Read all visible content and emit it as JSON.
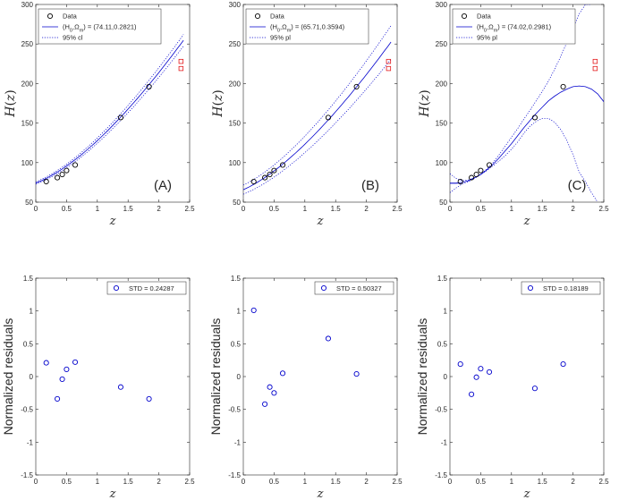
{
  "chart_data": [
    {
      "type": "scatter",
      "panel": "A",
      "panel_label": "(A)",
      "xlabel": "z",
      "ylabel": "H(z)",
      "xlim": [
        0,
        2.5
      ],
      "ylim": [
        50,
        300
      ],
      "xticks": [
        0,
        0.5,
        1,
        1.5,
        2,
        2.5
      ],
      "yticks": [
        50,
        100,
        150,
        200,
        250,
        300
      ],
      "xtick_labels": [
        "0",
        "0.5",
        "1",
        "1.5",
        "2",
        "2.5"
      ],
      "ytick_labels": [
        "50",
        "100",
        "150",
        "200",
        "250",
        "300"
      ],
      "grid": false,
      "legend_position": "top-left",
      "legend": [
        "Data",
        "(H_0,Ω_m) = (74.11,0.2821)",
        "95% cl"
      ],
      "series": [
        {
          "name": "Data",
          "kind": "points",
          "color": "#000000",
          "x": [
            0.17,
            0.35,
            0.43,
            0.5,
            0.64,
            1.38,
            1.84
          ],
          "y": [
            76,
            81,
            85,
            90,
            97,
            157,
            196
          ]
        },
        {
          "name": "(H_0,Ω_m) = (74.11,0.2821)",
          "kind": "fit",
          "color": "#0000cc",
          "H0": 74.11,
          "Om": 0.2821
        },
        {
          "name": "95% cl",
          "kind": "band",
          "color": "#0000cc",
          "lower": {
            "H0": 72.6,
            "Om": 0.2769
          },
          "upper": {
            "H0": 75.6,
            "Om": 0.2873
          }
        }
      ],
      "extra_points": {
        "color": "#e41a1c",
        "x": [
          2.36,
          2.36
        ],
        "y": [
          228,
          219
        ]
      }
    },
    {
      "type": "scatter",
      "panel": "B",
      "panel_label": "(B)",
      "xlabel": "z",
      "ylabel": "H(z)",
      "xlim": [
        0,
        2.5
      ],
      "ylim": [
        50,
        300
      ],
      "xticks": [
        0,
        0.5,
        1,
        1.5,
        2,
        2.5
      ],
      "yticks": [
        50,
        100,
        150,
        200,
        250,
        300
      ],
      "xtick_labels": [
        "0",
        "0.5",
        "1",
        "1.5",
        "2",
        "2.5"
      ],
      "ytick_labels": [
        "50",
        "100",
        "150",
        "200",
        "250",
        "300"
      ],
      "grid": false,
      "legend_position": "top-left",
      "legend": [
        "Data",
        "(H_0,Ω_m) = (65.71,0.3594)",
        "95% pl"
      ],
      "series": [
        {
          "name": "Data",
          "kind": "points",
          "color": "#000000",
          "x": [
            0.17,
            0.35,
            0.43,
            0.5,
            0.64,
            1.38,
            1.84
          ],
          "y": [
            76,
            81,
            85,
            90,
            97,
            157,
            196
          ]
        },
        {
          "name": "(H_0,Ω_m) = (65.71,0.3594)",
          "kind": "fit",
          "color": "#0000cc",
          "H0": 65.71,
          "Om": 0.3594
        },
        {
          "name": "95% pl",
          "kind": "band",
          "color": "#0000cc",
          "lower": {
            "H0": 60.0,
            "Om": 0.36
          },
          "upper": {
            "H0": 71.5,
            "Om": 0.355
          }
        }
      ],
      "extra_points": {
        "color": "#e41a1c",
        "x": [
          2.36,
          2.36
        ],
        "y": [
          228,
          219
        ]
      }
    },
    {
      "type": "scatter",
      "panel": "C",
      "panel_label": "(C)",
      "xlabel": "z",
      "ylabel": "H(z)",
      "xlim": [
        0,
        2.5
      ],
      "ylim": [
        50,
        300
      ],
      "xticks": [
        0,
        0.5,
        1,
        1.5,
        2,
        2.5
      ],
      "yticks": [
        50,
        100,
        150,
        200,
        250,
        300
      ],
      "xtick_labels": [
        "0",
        "0.5",
        "1",
        "1.5",
        "2",
        "2.5"
      ],
      "ytick_labels": [
        "50",
        "100",
        "150",
        "200",
        "250",
        "300"
      ],
      "grid": false,
      "legend_position": "top-left",
      "legend": [
        "Data",
        "(H_0,Ω_m) = (74.02,0.2981)",
        "95% pl"
      ],
      "series": [
        {
          "name": "Data",
          "kind": "points",
          "color": "#000000",
          "x": [
            0.17,
            0.35,
            0.43,
            0.5,
            0.64,
            1.38,
            1.84
          ],
          "y": [
            76,
            81,
            85,
            90,
            97,
            157,
            196
          ]
        },
        {
          "name": "(H_0,Ω_m) = (74.02,0.2981)",
          "kind": "curve",
          "color": "#0000cc",
          "x": [
            0,
            0.1,
            0.2,
            0.3,
            0.4,
            0.5,
            0.6,
            0.7,
            0.8,
            0.9,
            1.0,
            1.1,
            1.2,
            1.3,
            1.4,
            1.5,
            1.6,
            1.7,
            1.8,
            1.9,
            2.0,
            2.1,
            2.2,
            2.3,
            2.4,
            2.5
          ],
          "y": [
            74,
            74,
            75,
            77,
            81,
            85,
            91,
            98,
            106,
            115,
            124,
            134,
            144,
            153,
            162,
            170,
            178,
            184,
            189,
            193,
            196,
            197,
            196,
            193,
            187,
            177
          ]
        },
        {
          "name": "95% pl",
          "kind": "band-curves",
          "color": "#0000cc",
          "lower": {
            "x": [
              0,
              0.1,
              0.2,
              0.3,
              0.4,
              0.5,
              0.6,
              0.7,
              0.8,
              0.9,
              1.0,
              1.1,
              1.2,
              1.3,
              1.4,
              1.5,
              1.6,
              1.7,
              1.8,
              1.9,
              2.0,
              2.1,
              2.2,
              2.3,
              2.4
            ],
            "y": [
              86,
              80,
              77,
              78,
              81,
              85,
              90,
              96,
              102,
              109,
              117,
              126,
              137,
              146,
              152,
              156,
              156,
              151,
              142,
              128,
              110,
              88,
              76,
              62,
              50
            ]
          },
          "upper": {
            "x": [
              0,
              0.1,
              0.2,
              0.3,
              0.4,
              0.5,
              0.6,
              0.7,
              0.8,
              0.9,
              1.0,
              1.1,
              1.2,
              1.3,
              1.4,
              1.5,
              1.6,
              1.7,
              1.8,
              1.9,
              2.0,
              2.1,
              2.2,
              2.3
            ],
            "y": [
              62,
              68,
              73,
              76,
              80,
              85,
              92,
              100,
              110,
              121,
              132,
              143,
              155,
              166,
              178,
              190,
              203,
              218,
              234,
              252,
              270,
              288,
              300,
              300
            ]
          }
        },
        {
          "name": "marker",
          "kind": "flat",
          "color": "#0000cc",
          "x": [
            0,
            0.15
          ],
          "y": [
            74,
            74
          ]
        }
      ],
      "extra_points": {
        "color": "#e41a1c",
        "x": [
          2.36,
          2.36
        ],
        "y": [
          228,
          219
        ]
      }
    },
    {
      "type": "scatter",
      "panel": "A-residuals",
      "xlabel": "z",
      "ylabel": "Normalized residuals",
      "xlim": [
        0,
        2.5
      ],
      "ylim": [
        -1.5,
        1.5
      ],
      "xticks": [
        0,
        0.5,
        1,
        1.5,
        2,
        2.5
      ],
      "yticks": [
        -1.5,
        -1,
        -0.5,
        0,
        0.5,
        1,
        1.5
      ],
      "xtick_labels": [
        "0",
        "0.5",
        "1",
        "1.5",
        "2",
        "2.5"
      ],
      "ytick_labels": [
        "-1.5",
        "-1",
        "-0.5",
        "0",
        "0.5",
        "1",
        "1.5"
      ],
      "grid": false,
      "legend_position": "top-right",
      "legend": [
        "STD = 0.24287"
      ],
      "series": [
        {
          "name": "STD = 0.24287",
          "color": "#0000cc",
          "x": [
            0.17,
            0.35,
            0.43,
            0.5,
            0.64,
            1.38,
            1.84
          ],
          "y": [
            0.21,
            -0.34,
            -0.04,
            0.11,
            0.22,
            -0.16,
            -0.34
          ]
        }
      ]
    },
    {
      "type": "scatter",
      "panel": "B-residuals",
      "xlabel": "z",
      "ylabel": "Normalized residuals",
      "xlim": [
        0,
        2.5
      ],
      "ylim": [
        -1.5,
        1.5
      ],
      "xticks": [
        0,
        0.5,
        1,
        1.5,
        2,
        2.5
      ],
      "yticks": [
        -1.5,
        -1,
        -0.5,
        0,
        0.5,
        1,
        1.5
      ],
      "xtick_labels": [
        "0",
        "0.5",
        "1",
        "1.5",
        "2",
        "2.5"
      ],
      "ytick_labels": [
        "-1.5",
        "-1",
        "-0.5",
        "0",
        "0.5",
        "1",
        "1.5"
      ],
      "grid": false,
      "legend_position": "top-right",
      "legend": [
        "STD = 0.50327"
      ],
      "series": [
        {
          "name": "STD = 0.50327",
          "color": "#0000cc",
          "x": [
            0.17,
            0.35,
            0.43,
            0.5,
            0.64,
            1.38,
            1.84
          ],
          "y": [
            1.01,
            -0.42,
            -0.16,
            -0.25,
            0.05,
            0.58,
            0.04
          ]
        }
      ]
    },
    {
      "type": "scatter",
      "panel": "C-residuals",
      "xlabel": "z",
      "ylabel": "Normalized residuals",
      "xlim": [
        0,
        2.5
      ],
      "ylim": [
        -1.5,
        1.5
      ],
      "xticks": [
        0,
        0.5,
        1,
        1.5,
        2,
        2.5
      ],
      "yticks": [
        -1.5,
        -1,
        -0.5,
        0,
        0.5,
        1,
        1.5
      ],
      "xtick_labels": [
        "0",
        "0.5",
        "1",
        "1.5",
        "2",
        "2.5"
      ],
      "ytick_labels": [
        "-1.5",
        "-1",
        "-0.5",
        "0",
        "0.5",
        "1",
        "1.5"
      ],
      "grid": false,
      "legend_position": "top-right",
      "legend": [
        "STD = 0.18189"
      ],
      "series": [
        {
          "name": "STD = 0.18189",
          "color": "#0000cc",
          "x": [
            0.17,
            0.35,
            0.43,
            0.5,
            0.64,
            1.38,
            1.84
          ],
          "y": [
            0.19,
            -0.27,
            -0.01,
            0.12,
            0.07,
            -0.18,
            0.19
          ]
        }
      ]
    }
  ]
}
